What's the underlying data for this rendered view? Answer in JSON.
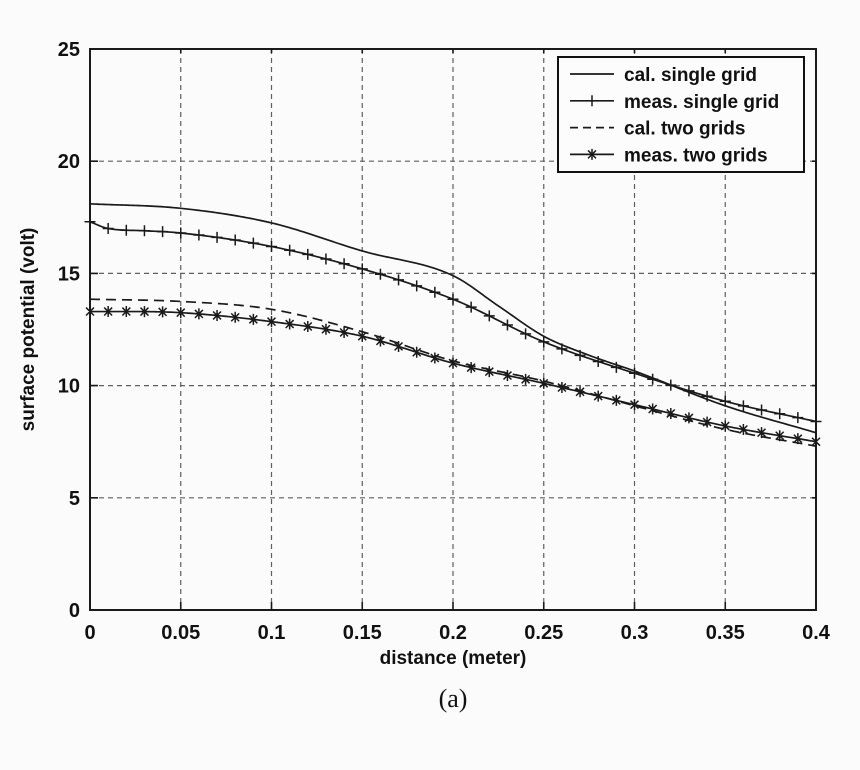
{
  "figure": {
    "caption": "(a)"
  },
  "chart_data": {
    "type": "line",
    "title": "",
    "xlabel": "distance (meter)",
    "ylabel": "surface potential (volt)",
    "xlim": [
      0,
      0.4
    ],
    "ylim": [
      0,
      25
    ],
    "x_ticks": [
      0,
      0.05,
      0.1,
      0.15,
      0.2,
      0.25,
      0.3,
      0.35,
      0.4
    ],
    "x_tick_labels": [
      "0",
      "0.05",
      "0.1",
      "0.15",
      "0.2",
      "0.25",
      "0.3",
      "0.35",
      "0.4"
    ],
    "y_ticks": [
      0,
      5,
      10,
      15,
      20,
      25
    ],
    "y_tick_labels": [
      "0",
      "5",
      "10",
      "15",
      "20",
      "25"
    ],
    "grid": true,
    "grid_style": "dashed",
    "legend_position": "top-right",
    "colors": {
      "line": "#1a1a1a",
      "grid": "#5f5f5f",
      "text": "#111111",
      "background": "#fbfbfb",
      "legend_background": "#fcfcfc",
      "legend_border": "#111111"
    },
    "series": [
      {
        "name": "cal. single grid",
        "line_style": "solid",
        "marker": "none",
        "x": [
          0,
          0.05,
          0.1,
          0.15,
          0.2,
          0.225,
          0.25,
          0.275,
          0.3,
          0.35,
          0.4
        ],
        "y": [
          18.1,
          17.9,
          17.25,
          16.0,
          14.9,
          13.55,
          12.2,
          11.35,
          10.65,
          9.1,
          7.9
        ]
      },
      {
        "name": "meas. single grid",
        "line_style": "solid",
        "marker": "plus",
        "marker_interval": 0.01,
        "x": [
          0,
          0.01,
          0.03,
          0.05,
          0.1,
          0.15,
          0.2,
          0.25,
          0.3,
          0.35,
          0.4
        ],
        "y": [
          17.3,
          17.0,
          16.9,
          16.8,
          16.2,
          15.2,
          13.85,
          11.95,
          10.55,
          9.3,
          8.4
        ]
      },
      {
        "name": "cal. two grids",
        "line_style": "dashed",
        "marker": "none",
        "x": [
          0,
          0.05,
          0.1,
          0.15,
          0.2,
          0.25,
          0.3,
          0.35,
          0.4
        ],
        "y": [
          13.85,
          13.75,
          13.4,
          12.4,
          11.1,
          10.2,
          9.1,
          8.05,
          7.3
        ]
      },
      {
        "name": "meas. two grids",
        "line_style": "solid",
        "marker": "asterisk",
        "marker_interval": 0.01,
        "x": [
          0,
          0.02,
          0.05,
          0.1,
          0.15,
          0.2,
          0.25,
          0.3,
          0.35,
          0.4
        ],
        "y": [
          13.3,
          13.3,
          13.25,
          12.85,
          12.2,
          11.0,
          10.1,
          9.15,
          8.2,
          7.5
        ]
      }
    ]
  }
}
